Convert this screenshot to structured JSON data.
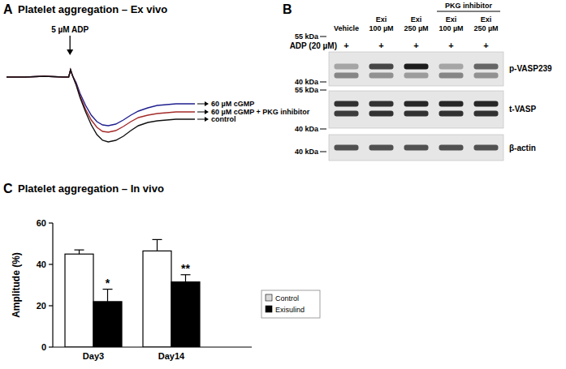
{
  "chart_data": [
    {
      "type": "line",
      "panel": "A",
      "title": "Platelet aggregation – Ex vivo",
      "tick_labels": false,
      "legend": "right",
      "x": [
        0,
        10,
        20,
        30,
        33,
        34,
        35,
        37,
        39,
        42,
        45,
        48,
        51,
        54,
        58,
        62,
        66,
        70,
        75,
        80,
        85,
        90,
        95,
        100
      ],
      "xlim": [
        0,
        100
      ],
      "ylim": [
        0,
        110
      ],
      "annotations": [
        {
          "text": "5 µM ADP",
          "x": 33.7
        }
      ],
      "series": [
        {
          "name": "60 µM cGMP",
          "color": "#1f1f8f",
          "values": [
            95,
            95,
            96,
            95,
            95,
            104,
            97,
            88,
            75,
            60,
            48,
            40,
            36,
            35,
            37,
            42,
            48,
            53,
            57,
            60,
            61,
            62,
            62,
            62
          ]
        },
        {
          "name": "60 µM cGMP + PKG inhibitor",
          "color": "#a52a2a",
          "values": [
            95,
            95,
            96,
            95,
            95,
            104,
            97,
            86,
            72,
            55,
            42,
            33,
            28,
            27,
            29,
            34,
            40,
            45,
            48,
            50,
            51,
            52,
            52,
            52
          ]
        },
        {
          "name": "control",
          "color": "#111111",
          "values": [
            95,
            95,
            96,
            95,
            95,
            104,
            97,
            85,
            70,
            52,
            36,
            24,
            17,
            15,
            17,
            22,
            29,
            35,
            39,
            41,
            42,
            43,
            43,
            43
          ]
        }
      ]
    },
    {
      "type": "bar",
      "panel": "C",
      "title": "Platelet aggregation – In vivo",
      "y_label": "Amplitude (%)",
      "categories": [
        "Day3",
        "Day14"
      ],
      "ylim": [
        0,
        60
      ],
      "yticks": [
        0,
        20,
        40,
        60
      ],
      "legend": "right",
      "series": [
        {
          "name": "Control",
          "color": "#ffffff",
          "values": [
            45,
            46.5
          ],
          "errors": [
            2,
            5.5
          ]
        },
        {
          "name": "Exisulind",
          "color": "#000000",
          "values": [
            22,
            31.5
          ],
          "errors": [
            6,
            3.5
          ],
          "significance": [
            "*",
            "**"
          ]
        }
      ]
    }
  ],
  "blot": {
    "panel": "B",
    "lanes": [
      [
        "Vehicle"
      ],
      [
        "Exi",
        "100 µM"
      ],
      [
        "Exi",
        "250 µM"
      ],
      [
        "Exi",
        "100 µM"
      ],
      [
        "Exi",
        "250 µM"
      ]
    ],
    "lane_group": {
      "label": "PKG inhibitor",
      "lanes": [
        3,
        4
      ]
    },
    "treatment": {
      "label": "ADP (20 µM)",
      "marks": [
        "+",
        "+",
        "+",
        "+",
        "+"
      ]
    },
    "rows": [
      {
        "label": "p-VASP239",
        "markers": [
          "55 kDa",
          "40 kDa"
        ],
        "bands": [
          [
            0.3,
            0.75,
            0.95,
            0.3,
            0.6
          ],
          [
            0.45,
            0.4,
            0.35,
            0.45,
            0.4
          ]
        ]
      },
      {
        "label": "t-VASP",
        "markers": [
          "55 kDa",
          "40 kDa"
        ],
        "bands": [
          [
            0.85,
            0.85,
            0.9,
            0.9,
            0.9
          ],
          [
            0.8,
            0.85,
            0.85,
            0.85,
            0.85
          ]
        ]
      },
      {
        "label": "β-actin",
        "markers": [
          "40 kDa"
        ],
        "bands": [
          [
            0.7,
            0.7,
            0.7,
            0.7,
            0.7
          ]
        ]
      }
    ]
  }
}
